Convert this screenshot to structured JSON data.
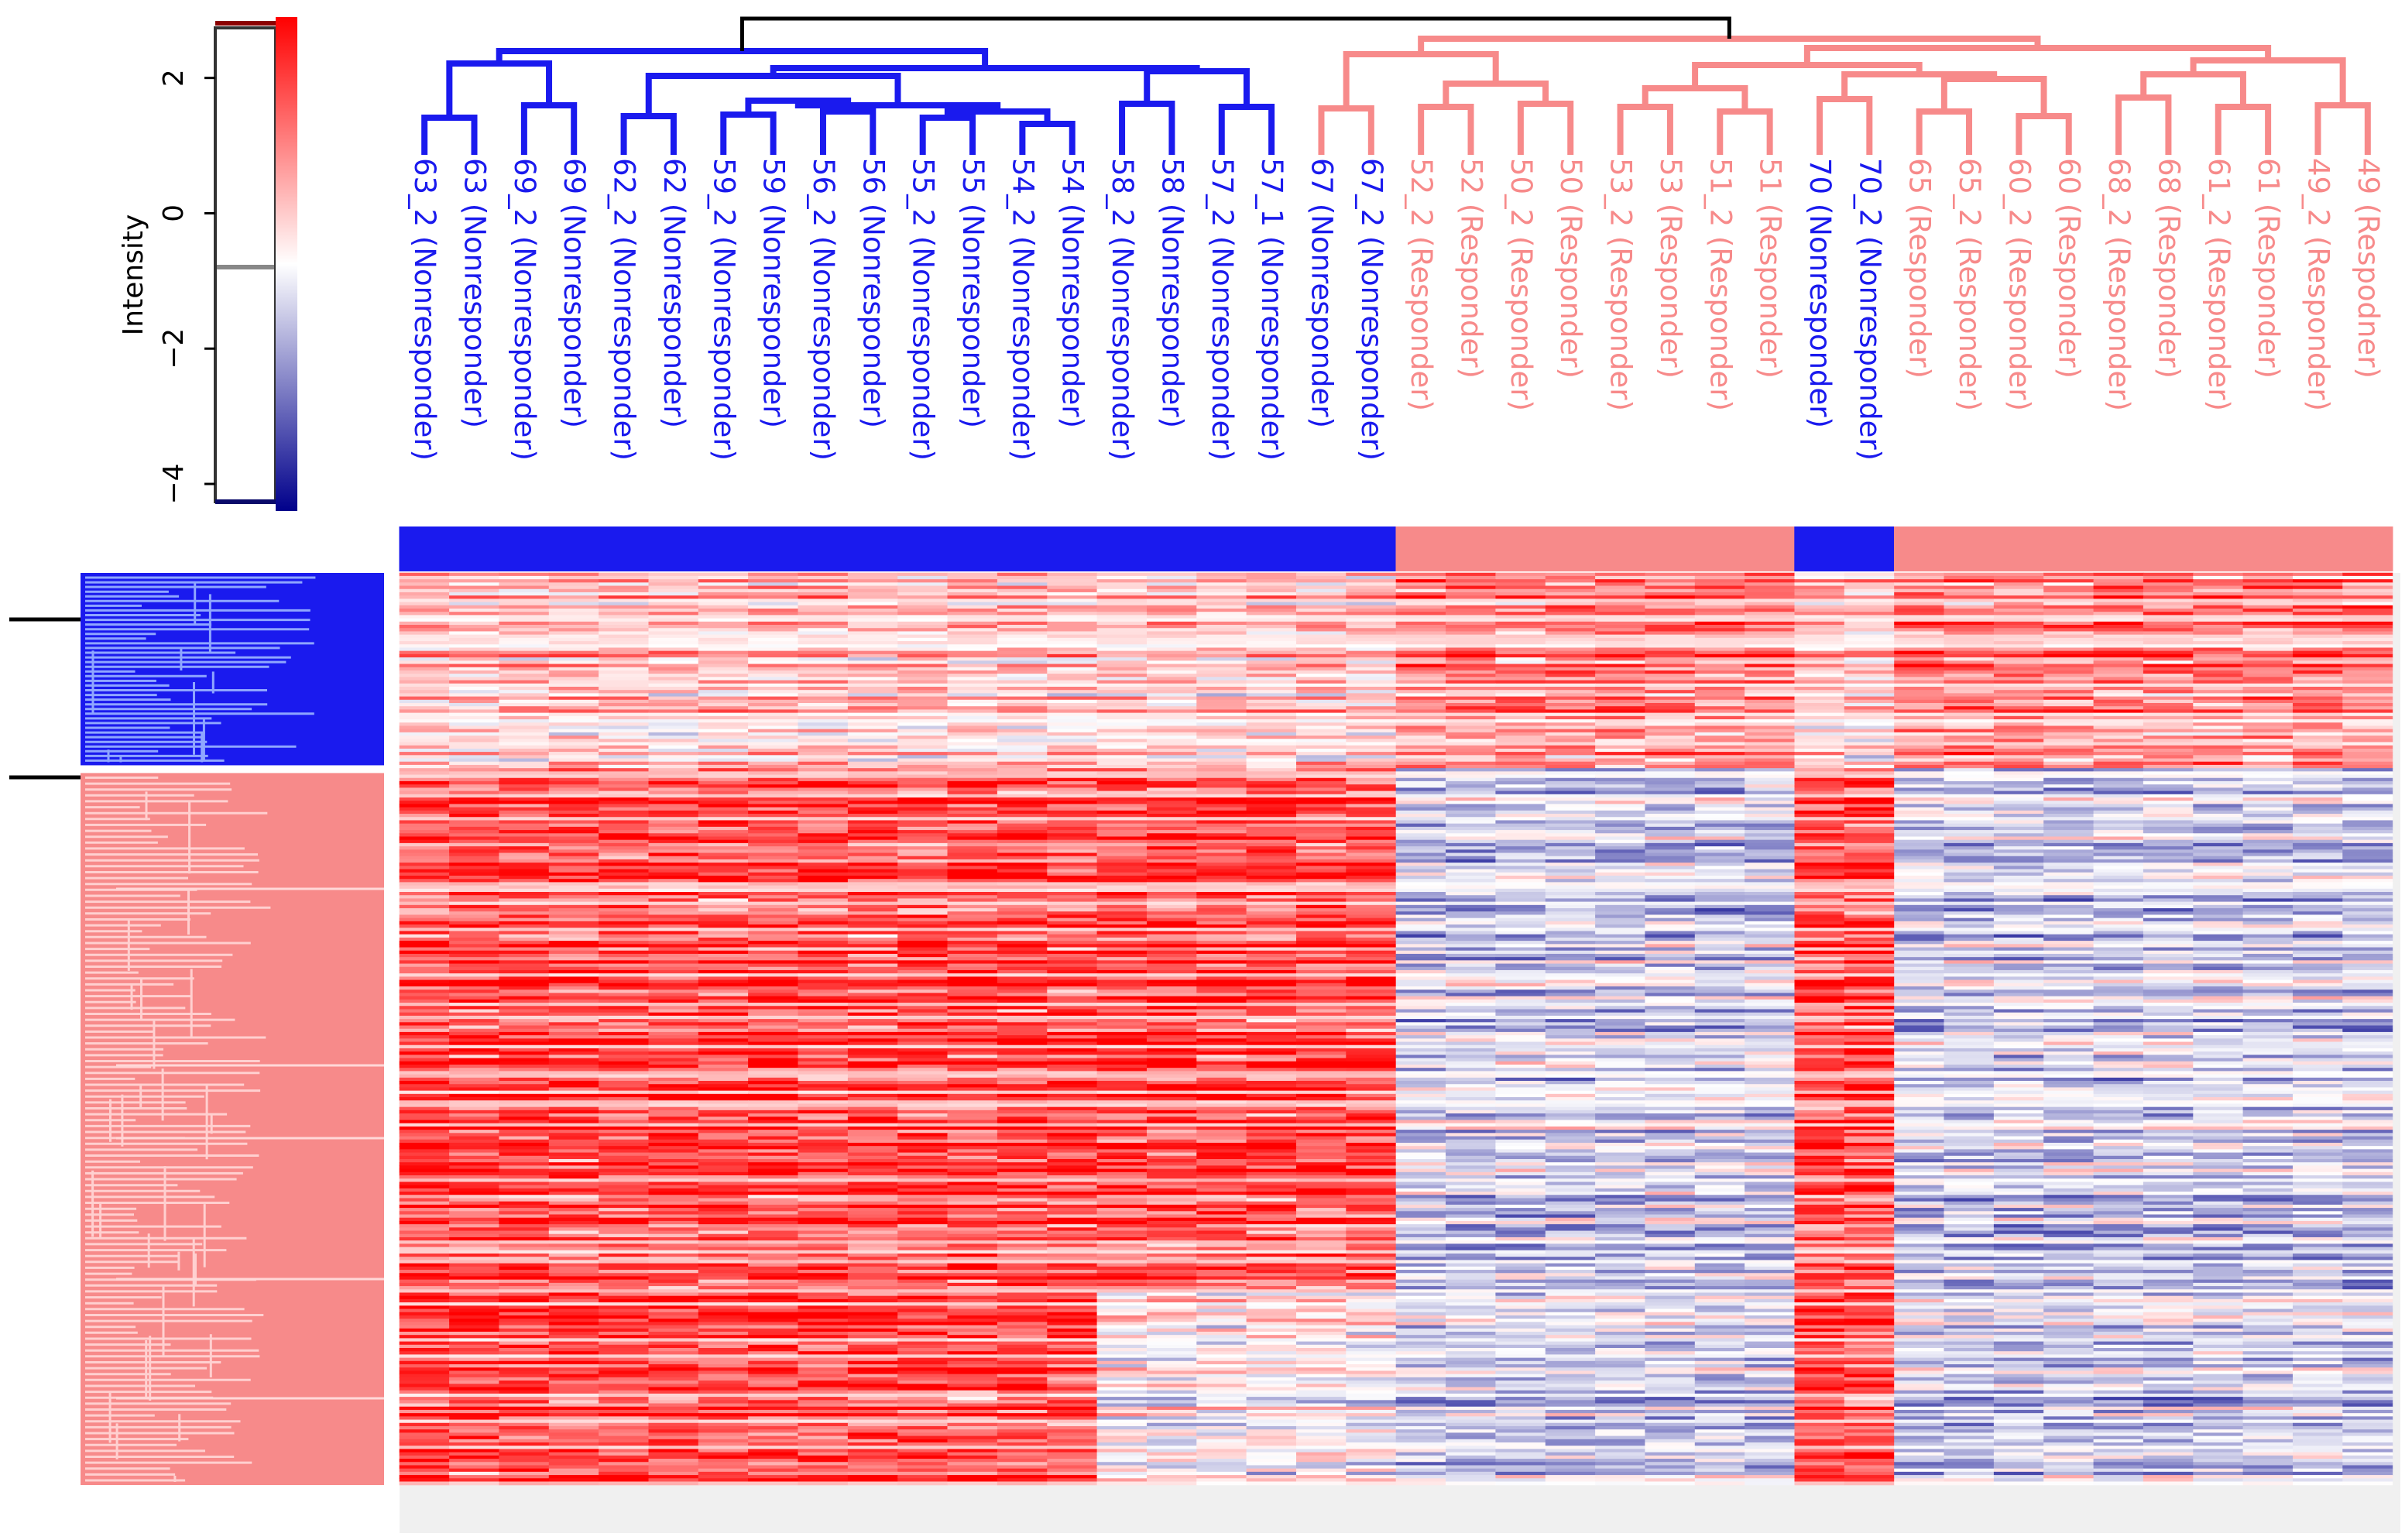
{
  "chart_data": {
    "type": "heatmap",
    "title": "",
    "colors": {
      "nonresponder": "#1a1aee",
      "responder": "#f78a8a",
      "high": "#ff0000",
      "mid": "#ffffff",
      "low": "#00008b",
      "root": "#000000",
      "panel": "#f0f0f0"
    },
    "colorbar": {
      "label": "Intensity",
      "range": [
        -4.4,
        2.9
      ],
      "ticks": [
        {
          "value": 2,
          "label": "2"
        },
        {
          "value": 0,
          "label": "0"
        },
        {
          "value": -2,
          "label": "−2"
        },
        {
          "value": -4,
          "label": "−4"
        }
      ]
    },
    "columns": [
      {
        "label": "63_2 (Nonresponder)",
        "group": "nonresponder"
      },
      {
        "label": "63 (Nonresponder)",
        "group": "nonresponder"
      },
      {
        "label": "69_2 (Nonresponder)",
        "group": "nonresponder"
      },
      {
        "label": "69 (Nonresponder)",
        "group": "nonresponder"
      },
      {
        "label": "62_2 (Nonresponder)",
        "group": "nonresponder"
      },
      {
        "label": "62 (Nonresponder)",
        "group": "nonresponder"
      },
      {
        "label": "59_2 (Nonresponder)",
        "group": "nonresponder"
      },
      {
        "label": "59 (Nonresponder)",
        "group": "nonresponder"
      },
      {
        "label": "56_2 (Nonresponder)",
        "group": "nonresponder"
      },
      {
        "label": "56 (Nonresponder)",
        "group": "nonresponder"
      },
      {
        "label": "55_2 (Nonresponder)",
        "group": "nonresponder"
      },
      {
        "label": "55 (Nonresponder)",
        "group": "nonresponder"
      },
      {
        "label": "54_2 (Nonresponder)",
        "group": "nonresponder"
      },
      {
        "label": "54 (Nonresponder)",
        "group": "nonresponder"
      },
      {
        "label": "58_2 (Nonresponder)",
        "group": "nonresponder"
      },
      {
        "label": "58 (Nonresponder)",
        "group": "nonresponder"
      },
      {
        "label": "57_2 (Nonresponder)",
        "group": "nonresponder"
      },
      {
        "label": "57_1 (Nonresponder)",
        "group": "nonresponder"
      },
      {
        "label": "67 (Nonresponder)",
        "group": "nonresponder"
      },
      {
        "label": "67_2 (Nonresponder)",
        "group": "nonresponder"
      },
      {
        "label": "52_2 (Responder)",
        "group": "responder"
      },
      {
        "label": "52 (Responder)",
        "group": "responder"
      },
      {
        "label": "50_2 (Responder)",
        "group": "responder"
      },
      {
        "label": "50 (Responder)",
        "group": "responder"
      },
      {
        "label": "53_2 (Responder)",
        "group": "responder"
      },
      {
        "label": "53 (Responder)",
        "group": "responder"
      },
      {
        "label": "51_2 (Responder)",
        "group": "responder"
      },
      {
        "label": "51 (Responder)",
        "group": "responder"
      },
      {
        "label": "70 (Nonresponder)",
        "group": "nonresponder"
      },
      {
        "label": "70_2 (Nonresponder)",
        "group": "nonresponder"
      },
      {
        "label": "65 (Responder)",
        "group": "responder"
      },
      {
        "label": "65_2 (Responder)",
        "group": "responder"
      },
      {
        "label": "60_2 (Responder)",
        "group": "responder"
      },
      {
        "label": "60 (Responder)",
        "group": "responder"
      },
      {
        "label": "68_2 (Responder)",
        "group": "responder"
      },
      {
        "label": "68 (Responder)",
        "group": "responder"
      },
      {
        "label": "61_2 (Responder)",
        "group": "responder"
      },
      {
        "label": "61 (Responder)",
        "group": "responder"
      },
      {
        "label": "49_2 (Responder)",
        "group": "responder"
      },
      {
        "label": "49 (Respodner)",
        "group": "responder"
      }
    ],
    "row_clusters": [
      {
        "name": "blue",
        "rows": 60
      },
      {
        "name": "pink",
        "rows": 220
      }
    ],
    "cell_pattern": {
      "blue_rows": {
        "nonresponder_block": 0.35,
        "responder_block": 0.7
      },
      "pink_rows": {
        "nonresponder_block": 1.0,
        "responder_block": -0.25
      }
    }
  }
}
